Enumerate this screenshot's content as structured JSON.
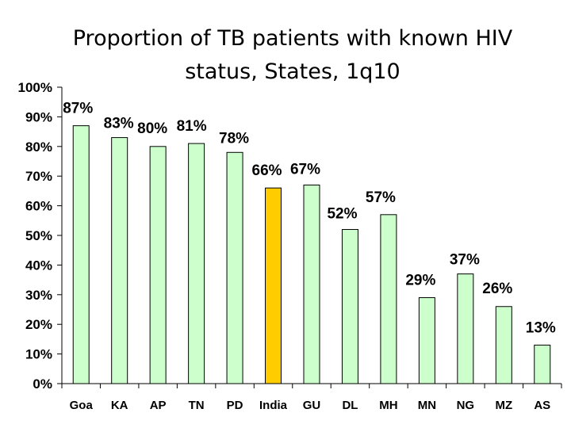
{
  "chart_data": {
    "type": "bar",
    "title_line1": "Proportion of TB patients with known HIV",
    "title_line2": "status, States, 1q10",
    "xlabel": "",
    "ylabel": "",
    "ylim": [
      0,
      100
    ],
    "yticks": [
      0,
      10,
      20,
      30,
      40,
      50,
      60,
      70,
      80,
      90,
      100
    ],
    "ytick_labels": [
      "0%",
      "10%",
      "20%",
      "30%",
      "40%",
      "50%",
      "60%",
      "70%",
      "80%",
      "90%",
      "100%"
    ],
    "categories": [
      "Goa",
      "KA",
      "AP",
      "TN",
      "PD",
      "India",
      "GU",
      "DL",
      "MH",
      "MN",
      "NG",
      "MZ",
      "AS"
    ],
    "values": [
      87,
      83,
      80,
      81,
      78,
      66,
      67,
      52,
      57,
      29,
      37,
      26,
      13
    ],
    "data_labels": [
      "87%",
      "83%",
      "80%",
      "81%",
      "78%",
      "66%",
      "67%",
      "52%",
      "57%",
      "29%",
      "37%",
      "26%",
      "13%"
    ],
    "highlight_category": "India",
    "grid": false,
    "legend": "none"
  },
  "colors": {
    "bar_fill": "#ccffcc",
    "highlight_fill": "#ffcc00",
    "bar_stroke": "#000000",
    "axis": "#000000"
  }
}
